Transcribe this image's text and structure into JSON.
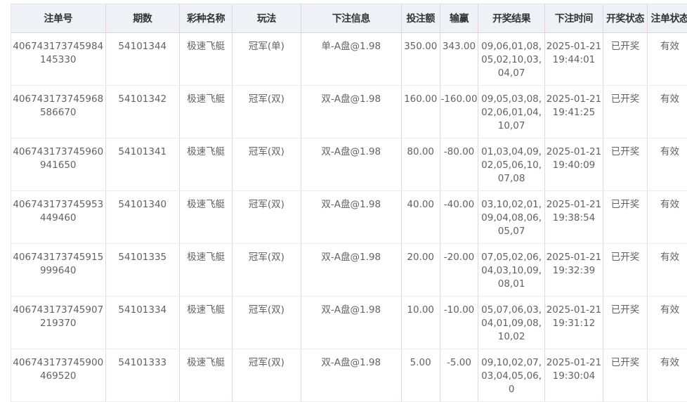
{
  "table": {
    "headers": [
      "注单号",
      "期数",
      "彩种名称",
      "玩法",
      "下注信息",
      "投注额",
      "输赢",
      "开奖结果",
      "下注时间",
      "开奖状态",
      "注单状态"
    ],
    "rows": [
      [
        "406743173745984145330",
        "54101344",
        "极速飞艇",
        "冠军(单)",
        "单-A盘@1.98",
        "350.00",
        "343.00",
        "09,06,01,08,05,02,10,03,04,07",
        "2025-01-21 19:44:01",
        "已开奖",
        "有效"
      ],
      [
        "406743173745968586670",
        "54101342",
        "极速飞艇",
        "冠军(双)",
        "双-A盘@1.98",
        "160.00",
        "-160.00",
        "09,05,03,08,02,06,01,04,10,07",
        "2025-01-21 19:41:25",
        "已开奖",
        "有效"
      ],
      [
        "406743173745960941650",
        "54101341",
        "极速飞艇",
        "冠军(双)",
        "双-A盘@1.98",
        "80.00",
        "-80.00",
        "01,03,04,09,02,05,06,10,07,08",
        "2025-01-21 19:40:09",
        "已开奖",
        "有效"
      ],
      [
        "406743173745953449460",
        "54101340",
        "极速飞艇",
        "冠军(双)",
        "双-A盘@1.98",
        "40.00",
        "-40.00",
        "03,10,02,01,09,04,08,06,05,07",
        "2025-01-21 19:38:54",
        "已开奖",
        "有效"
      ],
      [
        "406743173745915999640",
        "54101335",
        "极速飞艇",
        "冠军(双)",
        "双-A盘@1.98",
        "20.00",
        "-20.00",
        "07,05,02,06,04,03,10,09,08,01",
        "2025-01-21 19:32:39",
        "已开奖",
        "有效"
      ],
      [
        "406743173745907219370",
        "54101334",
        "极速飞艇",
        "冠军(双)",
        "双-A盘@1.98",
        "10.00",
        "-10.00",
        "05,07,06,03,04,01,09,08,10,02",
        "2025-01-21 19:31:12",
        "已开奖",
        "有效"
      ],
      [
        "406743173745900469520",
        "54101333",
        "极速飞艇",
        "冠军(双)",
        "双-A盘@1.98",
        "5.00",
        "-5.00",
        "09,10,02,07,03,04,05,06,0",
        "2025-01-21 19:30:04",
        "已开奖",
        "有效"
      ]
    ]
  }
}
